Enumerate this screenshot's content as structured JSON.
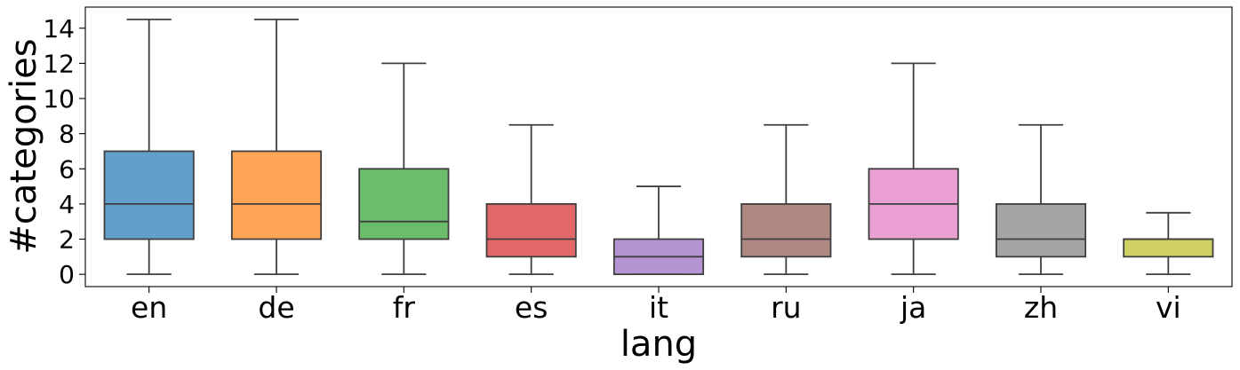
{
  "chart_data": {
    "type": "box",
    "xlabel": "lang",
    "ylabel": "#categories",
    "categories": [
      "en",
      "de",
      "fr",
      "es",
      "it",
      "ru",
      "ja",
      "zh",
      "vi"
    ],
    "boxes": [
      {
        "category": "en",
        "whisker_low": 0,
        "q1": 2,
        "median": 4,
        "q3": 7,
        "whisker_high": 14.5,
        "color": "#1f77b4"
      },
      {
        "category": "de",
        "whisker_low": 0,
        "q1": 2,
        "median": 4,
        "q3": 7,
        "whisker_high": 14.5,
        "color": "#ff7f0e"
      },
      {
        "category": "fr",
        "whisker_low": 0,
        "q1": 2,
        "median": 3,
        "q3": 6,
        "whisker_high": 12,
        "color": "#2ca02c"
      },
      {
        "category": "es",
        "whisker_low": 0,
        "q1": 1,
        "median": 2,
        "q3": 4,
        "whisker_high": 8.5,
        "color": "#d62728"
      },
      {
        "category": "it",
        "whisker_low": 0,
        "q1": 0,
        "median": 1,
        "q3": 2,
        "whisker_high": 5,
        "color": "#9467bd"
      },
      {
        "category": "ru",
        "whisker_low": 0,
        "q1": 1,
        "median": 2,
        "q3": 4,
        "whisker_high": 8.5,
        "color": "#8c564b"
      },
      {
        "category": "ja",
        "whisker_low": 0,
        "q1": 2,
        "median": 4,
        "q3": 6,
        "whisker_high": 12,
        "color": "#e377c2"
      },
      {
        "category": "zh",
        "whisker_low": 0,
        "q1": 1,
        "median": 2,
        "q3": 4,
        "whisker_high": 8.5,
        "color": "#7f7f7f"
      },
      {
        "category": "vi",
        "whisker_low": 0,
        "q1": 1,
        "median": 2,
        "q3": 2,
        "whisker_high": 3.5,
        "color": "#bcbd22"
      }
    ],
    "ylim": [
      -0.7,
      15.2
    ],
    "yticks": [
      0,
      2,
      4,
      6,
      8,
      10,
      12,
      14
    ],
    "ytick_labels": [
      "0",
      "2",
      "4",
      "6",
      "8",
      "10",
      "12",
      "14"
    ],
    "grid": false,
    "box_alpha": 0.7
  }
}
